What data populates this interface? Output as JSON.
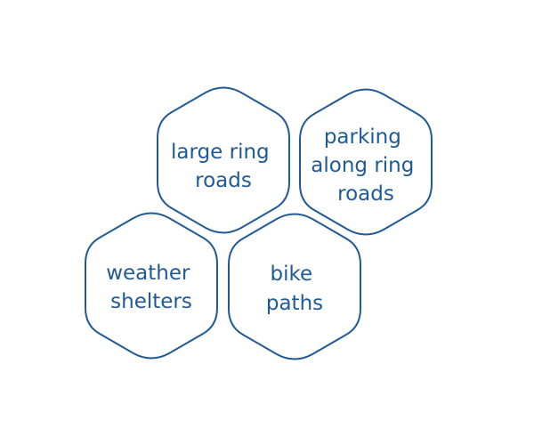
{
  "colors": {
    "stroke": "#1f5a96",
    "text": "#1f5a96",
    "fill": "#ffffff",
    "background": "#ffffff"
  },
  "hexagons": [
    {
      "id": "large-ring-roads",
      "lines": [
        "large ring",
        "roads"
      ]
    },
    {
      "id": "parking-along-ring-roads",
      "lines": [
        "parking",
        "along ring",
        "roads"
      ]
    },
    {
      "id": "weather-shelters",
      "lines": [
        "weather",
        "shelters"
      ]
    },
    {
      "id": "bike-paths",
      "lines": [
        "bike",
        "paths"
      ]
    }
  ]
}
